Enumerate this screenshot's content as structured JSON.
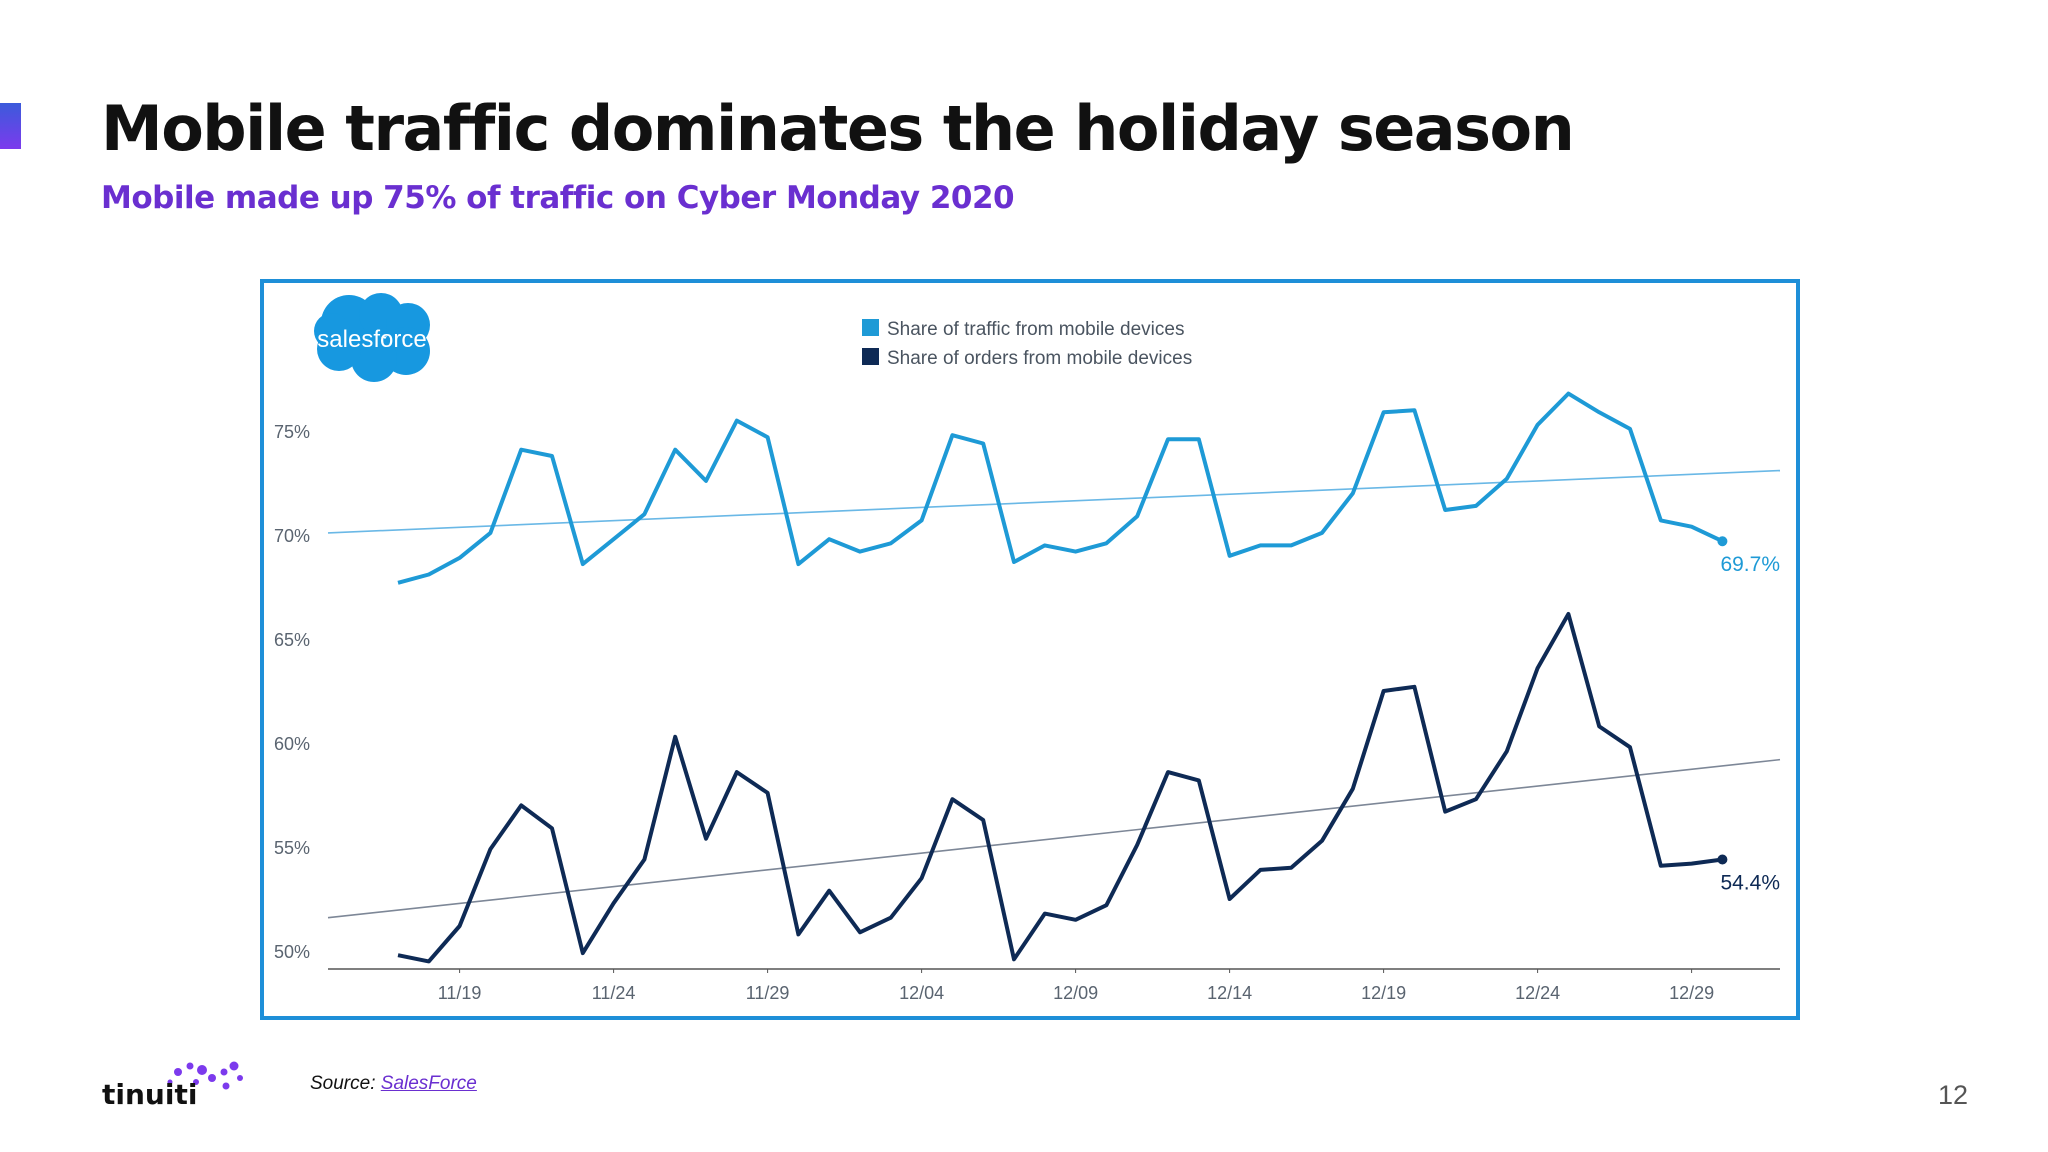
{
  "slide": {
    "title": "Mobile traffic dominates the holiday season",
    "subtitle": "Mobile made up 75% of traffic on Cyber Monday 2020",
    "source_prefix": "Source: ",
    "source_link": "SalesForce",
    "page_number": "12",
    "footer_brand": "tinuiti",
    "chart_brand": "salesforce"
  },
  "colors": {
    "title": "#111111",
    "subtitle": "#6a2fd0",
    "frame": "#1e8fd8",
    "traffic": "#1e9ad6",
    "orders": "#0e2a55",
    "traffic_trend": "#6ab8e6",
    "orders_trend": "#7d8797",
    "salesforce_cloud": "#1798e0"
  },
  "chart_data": {
    "type": "line",
    "title": "",
    "xlabel": "",
    "ylabel": "",
    "ylim": [
      48,
      80
    ],
    "y_ticks": [
      "50%",
      "55%",
      "60%",
      "65%",
      "70%",
      "75%"
    ],
    "y_tick_values": [
      50,
      55,
      60,
      65,
      70,
      75
    ],
    "x_ticks": [
      "11/19",
      "11/24",
      "11/29",
      "12/04",
      "12/09",
      "12/14",
      "12/19",
      "12/24",
      "12/29"
    ],
    "x_tick_index": [
      2,
      7,
      12,
      17,
      22,
      27,
      32,
      37,
      42
    ],
    "grid": false,
    "legend": "top-center",
    "series": [
      {
        "name": "Share of traffic from mobile devices",
        "color": "#1e9ad6",
        "end_label": "69.7%",
        "values": [
          67.7,
          68.1,
          68.9,
          70.1,
          74.1,
          73.8,
          68.6,
          69.8,
          71.0,
          74.1,
          72.6,
          75.5,
          74.7,
          68.6,
          69.8,
          69.2,
          69.6,
          70.7,
          74.8,
          74.4,
          68.7,
          69.5,
          69.2,
          69.6,
          70.9,
          74.6,
          74.6,
          69.0,
          69.5,
          69.5,
          70.1,
          72.0,
          75.9,
          76.0,
          71.2,
          71.4,
          72.7,
          75.3,
          76.8,
          75.9,
          75.1,
          70.7,
          70.4,
          69.7
        ]
      },
      {
        "name": "Share of orders from mobile devices",
        "color": "#0e2a55",
        "end_label": "54.4%",
        "values": [
          49.8,
          49.5,
          51.2,
          54.9,
          57.0,
          55.9,
          49.9,
          52.3,
          54.4,
          60.3,
          55.4,
          58.6,
          57.6,
          50.8,
          52.9,
          50.9,
          51.6,
          53.5,
          57.3,
          56.3,
          49.6,
          51.8,
          51.5,
          52.2,
          55.1,
          58.6,
          58.2,
          52.5,
          53.9,
          54.0,
          55.3,
          57.8,
          62.5,
          62.7,
          56.7,
          57.3,
          59.6,
          63.6,
          66.2,
          60.8,
          59.8,
          54.1,
          54.2,
          54.4
        ]
      }
    ],
    "trendlines": [
      {
        "series": "Share of traffic from mobile devices",
        "start": 70.1,
        "end": 73.1
      },
      {
        "series": "Share of orders from mobile devices",
        "start": 51.6,
        "end": 59.2
      }
    ]
  }
}
